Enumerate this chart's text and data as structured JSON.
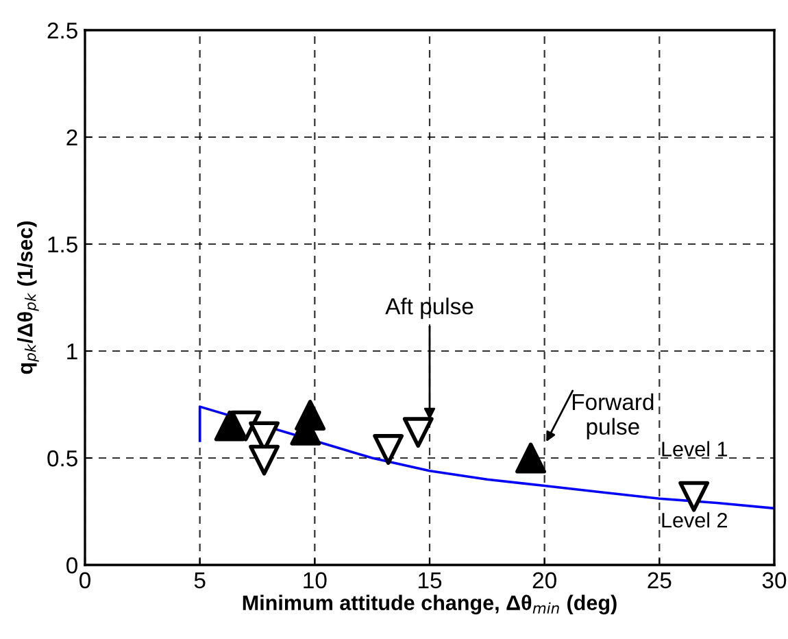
{
  "chart_data": {
    "type": "scatter",
    "xlabel": "Minimum attitude change, Δθ$_{min}$ (deg)",
    "ylabel": "q$_{pk}$/Δθ$_{pk}$ (1/sec)",
    "xlim": [
      0,
      30
    ],
    "ylim": [
      0,
      2.5
    ],
    "xticks": [
      0,
      5,
      10,
      15,
      20,
      25,
      30
    ],
    "yticks": [
      0,
      0.5,
      1,
      1.5,
      2,
      2.5
    ],
    "grid": true,
    "legend": false,
    "series": [
      {
        "type": "line",
        "color": "#0000ff",
        "marker": "none",
        "line_style": "solid",
        "x": [
          5,
          5,
          10,
          12.5,
          15,
          17.5,
          20,
          22.5,
          25,
          27.5,
          30
        ],
        "values": [
          0.58,
          0.74,
          0.58,
          0.5,
          0.44,
          0.4,
          0.37,
          0.34,
          0.31,
          0.29,
          0.265
        ]
      },
      {
        "color": "#000000",
        "marker": "triangle",
        "x": [
          6.3,
          9.6,
          9.8,
          19.4
        ],
        "values": [
          0.65,
          0.63,
          0.7,
          0.5
        ]
      },
      {
        "color": "#000000",
        "marker": "triangle_down",
        "x": [
          7.0,
          7.8,
          7.8,
          13.2,
          14.5,
          26.5
        ],
        "values": [
          0.65,
          0.6,
          0.49,
          0.54,
          0.62,
          0.32
        ]
      }
    ],
    "annotations": [
      {
        "text": "Aft pulse",
        "x": 15,
        "y": 0.66
      },
      "Forward\npulse",
      "Level 1",
      "Level 2"
    ]
  }
}
